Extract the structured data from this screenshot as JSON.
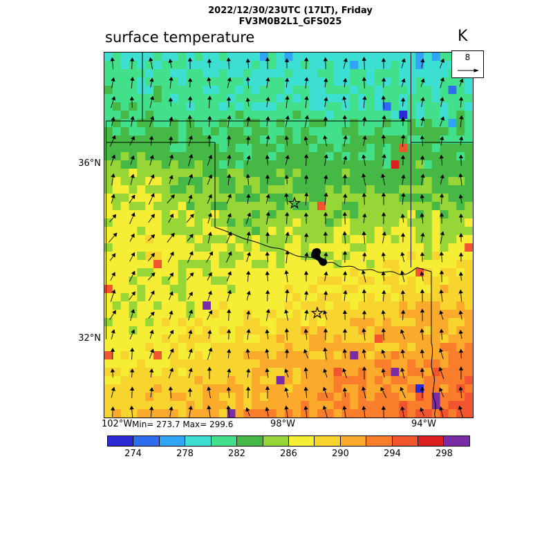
{
  "header": {
    "title_line1": "2022/12/30/23UTC (17LT), Friday",
    "title_line2": "FV3M0B2L1_GFS025",
    "field_label": "surface temperature",
    "units": "K"
  },
  "wind_ref": {
    "value": "8"
  },
  "axes": {
    "lat": [
      "36°N",
      "32°N"
    ],
    "lon": [
      "102°W",
      "98°W",
      "94°W"
    ]
  },
  "stats": {
    "min_max": "Min= 273.7 Max= 299.6"
  },
  "colorbar": {
    "labels": [
      "274",
      "278",
      "282",
      "286",
      "290",
      "294",
      "298"
    ],
    "colors": [
      "#2b2bd5",
      "#2f6df0",
      "#30a5f5",
      "#3cdfd2",
      "#43e08c",
      "#46b846",
      "#96d636",
      "#f5ee35",
      "#f8d52e",
      "#fbaa2c",
      "#f97d2b",
      "#f2542e",
      "#dc2020",
      "#7a2ca6"
    ]
  },
  "chart_data": {
    "type": "heatmap",
    "title": "surface temperature",
    "units": "K",
    "model": "FV3M0B2L1_GFS025",
    "valid_time": "2022/12/30/23UTC (17LT), Friday",
    "min": 273.7,
    "max": 299.6,
    "colorbar_levels": [
      274,
      276,
      278,
      280,
      282,
      284,
      286,
      288,
      290,
      292,
      294,
      296,
      298
    ],
    "colorbar_labeled_levels": [
      274,
      278,
      282,
      286,
      290,
      294,
      298
    ],
    "colorbar_range": [
      272,
      300
    ],
    "x_ticks": [
      "102°W",
      "98°W",
      "94°W"
    ],
    "y_ticks": [
      "36°N",
      "32°N"
    ],
    "wind_reference": 8,
    "region": "Oklahoma / north Texas / Red River valley",
    "field_summary": "Surface temperature decreases northward: ~290-293 K (orange) across the south and southeast, a ~286-288 K yellow band over west Texas and the Red River valley, ~282-285 K (green) over central Oklahoma, and ~279-281 K (cyan/turquoise) along the northern (Kansas) edge. Scattered cold pixels (<278 K, blue) in the northeast corner, scattered warm pixels (294-300 K, red/purple) in the south including a purple streak along the Sabine river. Wind vectors point generally northward (southerly flow), veering toward the northeast over the western third of the domain.",
    "overlays": [
      "state borders (OK/TX/KS/MO/AR panhandle outlines, Red River)",
      "Lake Texoma (black fill)",
      "two open star city markers",
      "wind vector field with reference arrow = 8"
    ]
  }
}
